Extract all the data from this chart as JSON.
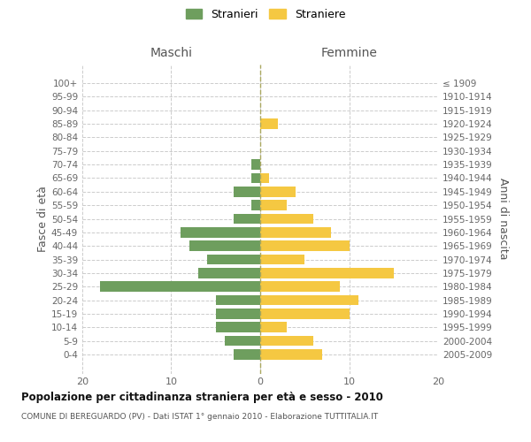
{
  "age_groups": [
    "100+",
    "95-99",
    "90-94",
    "85-89",
    "80-84",
    "75-79",
    "70-74",
    "65-69",
    "60-64",
    "55-59",
    "50-54",
    "45-49",
    "40-44",
    "35-39",
    "30-34",
    "25-29",
    "20-24",
    "15-19",
    "10-14",
    "5-9",
    "0-4"
  ],
  "birth_years": [
    "≤ 1909",
    "1910-1914",
    "1915-1919",
    "1920-1924",
    "1925-1929",
    "1930-1934",
    "1935-1939",
    "1940-1944",
    "1945-1949",
    "1950-1954",
    "1955-1959",
    "1960-1964",
    "1965-1969",
    "1970-1974",
    "1975-1979",
    "1980-1984",
    "1985-1989",
    "1990-1994",
    "1995-1999",
    "2000-2004",
    "2005-2009"
  ],
  "maschi": [
    0,
    0,
    0,
    0,
    0,
    0,
    1,
    1,
    3,
    1,
    3,
    9,
    8,
    6,
    7,
    18,
    5,
    5,
    5,
    4,
    3
  ],
  "femmine": [
    0,
    0,
    0,
    2,
    0,
    0,
    0,
    1,
    4,
    3,
    6,
    8,
    10,
    5,
    15,
    9,
    11,
    10,
    3,
    6,
    7
  ],
  "color_maschi": "#6e9e5e",
  "color_femmine": "#f5c842",
  "bg_color": "#ffffff",
  "grid_color": "#cccccc",
  "title": "Popolazione per cittadinanza straniera per età e sesso - 2010",
  "subtitle": "COMUNE DI BEREGUARDO (PV) - Dati ISTAT 1° gennaio 2010 - Elaborazione TUTTITALIA.IT",
  "ylabel_left": "Fasce di età",
  "ylabel_right": "Anni di nascita",
  "xlabel_left": "Maschi",
  "xlabel_right": "Femmine",
  "legend_stranieri": "Stranieri",
  "legend_straniere": "Straniere",
  "xlim": 20
}
